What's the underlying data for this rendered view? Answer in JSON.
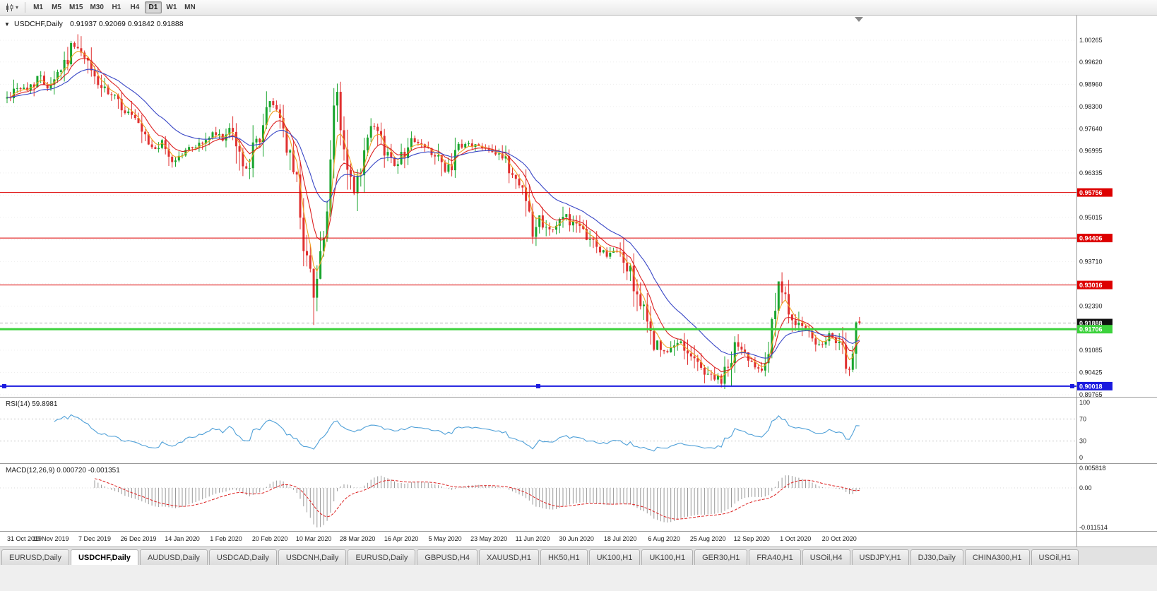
{
  "timeframes": {
    "items": [
      "M1",
      "M5",
      "M15",
      "M30",
      "H1",
      "H4",
      "D1",
      "W1",
      "MN"
    ],
    "active": "D1"
  },
  "chart": {
    "symbol": "USDCHF,Daily",
    "ohlc": "0.91937 0.92069 0.91842 0.91888"
  },
  "colors": {
    "up": "#19a52e",
    "down": "#e03030",
    "grid": "#ededed",
    "separator": "#9a9a9a",
    "macd_hist": "#999999",
    "macd_signal": "#dc2020"
  },
  "price_axis": {
    "labels": [
      "1.00265",
      "0.99620",
      "0.98960",
      "0.98300",
      "0.97640",
      "0.96995",
      "0.96335",
      "0.95015",
      "0.93710",
      "0.92390",
      "0.91085",
      "0.90425",
      "0.89765"
    ],
    "grid": [
      1.00265,
      0.9962,
      0.9896,
      0.983,
      0.9764,
      0.96995,
      0.96335,
      0.95675,
      0.95015,
      0.94355,
      0.9371,
      0.9305,
      0.9239,
      0.9173,
      0.91085,
      0.90425,
      0.89765
    ],
    "boxes": [
      {
        "text": "0.95756",
        "color": "#dd0000",
        "text_color": "#ffffff"
      },
      {
        "text": "0.94406",
        "color": "#dd0000",
        "text_color": "#ffffff"
      },
      {
        "text": "0.93016",
        "color": "#dd0000",
        "text_color": "#ffffff"
      },
      {
        "text": "0.91888",
        "color": "#101010",
        "text_color": "#ffffff"
      },
      {
        "text": "0.91706",
        "color": "#3cd23c",
        "text_color": "#ffffff"
      },
      {
        "text": "0.90018",
        "color": "#1a1adf",
        "text_color": "#ffffff"
      }
    ]
  },
  "hlines": [
    {
      "price": 0.95756,
      "color": "#dd0000",
      "width": 1
    },
    {
      "price": 0.94406,
      "color": "#dd0000",
      "width": 1
    },
    {
      "price": 0.93016,
      "color": "#dd0000",
      "width": 1
    },
    {
      "price": 0.91706,
      "color": "#3cd23c",
      "width": 3
    },
    {
      "price": 0.90018,
      "color": "#1a1adf",
      "width": 2,
      "selected": true
    }
  ],
  "bid_line": {
    "price": 0.91888,
    "color": "#b0b0b0"
  },
  "rsi_panel": {
    "label": "RSI(14) 59.8981",
    "axis_labels": [
      "100",
      "70",
      "30",
      "0"
    ]
  },
  "macd_panel": {
    "label": "MACD(12,26,9) 0.000720 -0.001351",
    "axis_labels": [
      "0.005818",
      "0.00",
      "-0.011514"
    ]
  },
  "chart_data": {
    "type": "candlestick",
    "symbol": "USDCHF",
    "timeframe": "Daily",
    "last_bar": {
      "open": 0.91937,
      "high": 0.92069,
      "low": 0.91842,
      "close": 0.91888
    },
    "num_candles": 254,
    "seed": 42,
    "ylim": [
      0.8972,
      1.0062
    ],
    "x_label_step": 13,
    "x_labels": [
      "31 Oct 2019",
      "19 Nov 2019",
      "7 Dec 2019",
      "26 Dec 2019",
      "14 Jan 2020",
      "1 Feb 2020",
      "20 Feb 2020",
      "10 Mar 2020",
      "28 Mar 2020",
      "16 Apr 2020",
      "5 May 2020",
      "23 May 2020",
      "11 Jun 2020",
      "30 Jun 2020",
      "18 Jul 2020",
      "6 Aug 2020",
      "25 Aug 2020",
      "12 Sep 2020",
      "1 Oct 2020",
      "20 Oct 2020"
    ],
    "keypoints": [
      [
        0,
        0.9855
      ],
      [
        3,
        0.989
      ],
      [
        6,
        0.9878
      ],
      [
        9,
        0.992
      ],
      [
        12,
        0.9892
      ],
      [
        15,
        0.9932
      ],
      [
        18,
        0.9975
      ],
      [
        20,
        1.0015
      ],
      [
        22,
        0.998
      ],
      [
        24,
        0.9952
      ],
      [
        26,
        0.9916
      ],
      [
        29,
        0.9872
      ],
      [
        32,
        0.9852
      ],
      [
        34,
        0.983
      ],
      [
        37,
        0.98
      ],
      [
        40,
        0.9745
      ],
      [
        43,
        0.9705
      ],
      [
        46,
        0.9718
      ],
      [
        49,
        0.9668
      ],
      [
        52,
        0.969
      ],
      [
        55,
        0.9712
      ],
      [
        58,
        0.9722
      ],
      [
        61,
        0.9748
      ],
      [
        64,
        0.9738
      ],
      [
        66,
        0.9756
      ],
      [
        68,
        0.9722
      ],
      [
        70,
        0.9648
      ],
      [
        72,
        0.9668
      ],
      [
        75,
        0.9748
      ],
      [
        78,
        0.984
      ],
      [
        80,
        0.983
      ],
      [
        82,
        0.9762
      ],
      [
        84,
        0.9672
      ],
      [
        86,
        0.9608
      ],
      [
        88,
        0.9428
      ],
      [
        90,
        0.933
      ],
      [
        91,
        0.9272
      ],
      [
        92,
        0.9335
      ],
      [
        93,
        0.9398
      ],
      [
        94,
        0.9448
      ],
      [
        95,
        0.9498
      ],
      [
        96,
        0.9645
      ],
      [
        97,
        0.9832
      ],
      [
        98,
        0.9862
      ],
      [
        99,
        0.9772
      ],
      [
        100,
        0.97
      ],
      [
        101,
        0.964
      ],
      [
        103,
        0.957
      ],
      [
        105,
        0.9632
      ],
      [
        107,
        0.9726
      ],
      [
        109,
        0.9768
      ],
      [
        111,
        0.9722
      ],
      [
        113,
        0.9688
      ],
      [
        115,
        0.9662
      ],
      [
        117,
        0.9682
      ],
      [
        119,
        0.9718
      ],
      [
        121,
        0.9732
      ],
      [
        123,
        0.9712
      ],
      [
        126,
        0.9698
      ],
      [
        128,
        0.9682
      ],
      [
        130,
        0.963
      ],
      [
        132,
        0.9662
      ],
      [
        134,
        0.9702
      ],
      [
        137,
        0.9718
      ],
      [
        140,
        0.9712
      ],
      [
        143,
        0.9708
      ],
      [
        146,
        0.9692
      ],
      [
        148,
        0.9662
      ],
      [
        150,
        0.963
      ],
      [
        152,
        0.9602
      ],
      [
        154,
        0.9578
      ],
      [
        156,
        0.944
      ],
      [
        158,
        0.9505
      ],
      [
        160,
        0.9478
      ],
      [
        162,
        0.9466
      ],
      [
        164,
        0.9488
      ],
      [
        166,
        0.9512
      ],
      [
        168,
        0.9482
      ],
      [
        170,
        0.9462
      ],
      [
        172,
        0.9448
      ],
      [
        174,
        0.9426
      ],
      [
        176,
        0.9406
      ],
      [
        178,
        0.939
      ],
      [
        180,
        0.9398
      ],
      [
        182,
        0.9396
      ],
      [
        184,
        0.9352
      ],
      [
        186,
        0.931
      ],
      [
        188,
        0.9246
      ],
      [
        190,
        0.918
      ],
      [
        192,
        0.9134
      ],
      [
        194,
        0.9108
      ],
      [
        196,
        0.9096
      ],
      [
        198,
        0.9118
      ],
      [
        200,
        0.9136
      ],
      [
        202,
        0.9108
      ],
      [
        204,
        0.9078
      ],
      [
        206,
        0.9056
      ],
      [
        208,
        0.9038
      ],
      [
        210,
        0.9028
      ],
      [
        212,
        0.9012
      ],
      [
        214,
        0.9056
      ],
      [
        216,
        0.9126
      ],
      [
        218,
        0.9106
      ],
      [
        220,
        0.9088
      ],
      [
        222,
        0.9068
      ],
      [
        224,
        0.906
      ],
      [
        226,
        0.9106
      ],
      [
        227,
        0.918
      ],
      [
        229,
        0.929
      ],
      [
        231,
        0.9252
      ],
      [
        233,
        0.9212
      ],
      [
        235,
        0.9186
      ],
      [
        237,
        0.916
      ],
      [
        239,
        0.9142
      ],
      [
        241,
        0.9118
      ],
      [
        243,
        0.9128
      ],
      [
        245,
        0.9152
      ],
      [
        247,
        0.9132
      ],
      [
        248,
        0.9092
      ],
      [
        249,
        0.9062
      ],
      [
        250,
        0.9048
      ],
      [
        251,
        0.9076
      ],
      [
        252,
        0.9162
      ],
      [
        253,
        0.91888
      ]
    ],
    "anchors": [
      {
        "i": 20,
        "h": 1.0023
      },
      {
        "i": 78,
        "h": 0.9846
      },
      {
        "i": 91,
        "l": 0.9183
      },
      {
        "i": 98,
        "h": 0.9898
      },
      {
        "i": 212,
        "l": 0.8998
      },
      {
        "i": 229,
        "h": 0.9301
      },
      {
        "i": 250,
        "l": 0.9032
      },
      {
        "i": 253,
        "o": 0.91937,
        "h": 0.92069,
        "l": 0.91842,
        "c": 0.91888
      }
    ],
    "indicators": {
      "ma": [
        {
          "period": 4,
          "color": "#efa423"
        },
        {
          "period": 9,
          "color": "#dc2020"
        },
        {
          "period": 22,
          "color": "#3947c6"
        }
      ],
      "rsi": {
        "period": 14,
        "value": 59.8981,
        "color": "#4fa0d8",
        "levels": [
          30,
          70
        ]
      },
      "macd": {
        "fast": 12,
        "slow": 26,
        "signal": 9,
        "values": [
          0.00072,
          -0.001351
        ]
      }
    }
  },
  "tabs": {
    "active_index": 1,
    "items": [
      "EURUSD,Daily",
      "USDCHF,Daily",
      "AUDUSD,Daily",
      "USDCAD,Daily",
      "USDCNH,Daily",
      "EURUSD,Daily",
      "GBPUSD,H4",
      "XAUUSD,H1",
      "HK50,H1",
      "UK100,H1",
      "UK100,H1",
      "GER30,H1",
      "FRA40,H1",
      "USOil,H4",
      "USDJPY,H1",
      "DJ30,Daily",
      "CHINA300,H1",
      "USOil,H1"
    ]
  }
}
